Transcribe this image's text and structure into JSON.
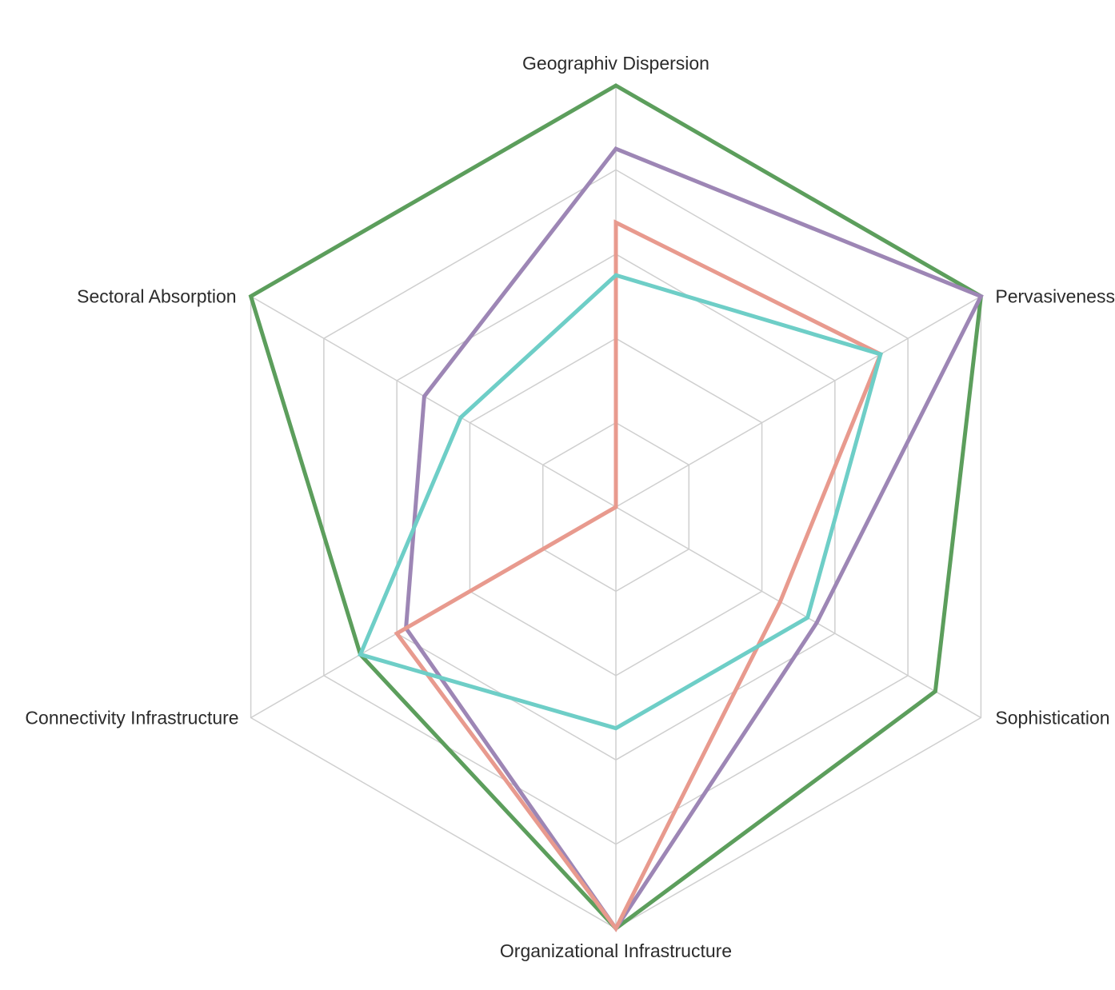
{
  "chart_data": {
    "type": "radar",
    "title": "",
    "axes": [
      "Geographiv Dispersion",
      "Pervasiveness",
      "Sophistication",
      "Organizational Infrastructure",
      "Connectivity Infrastructure",
      "Sectoral Absorption"
    ],
    "range": [
      0,
      4
    ],
    "grid_levels": 5,
    "grid": true,
    "legend": "none",
    "series": [
      {
        "color": "#5c9e5c",
        "values": [
          4.0,
          4.0,
          3.5,
          4.0,
          2.8,
          4.0
        ]
      },
      {
        "color": "#9d86b5",
        "values": [
          3.4,
          4.0,
          2.2,
          4.0,
          2.3,
          2.1
        ]
      },
      {
        "color": "#e89a8e",
        "values": [
          2.7,
          2.9,
          1.8,
          4.0,
          2.4,
          0.0
        ]
      },
      {
        "color": "#6ecec7",
        "values": [
          2.2,
          2.9,
          2.1,
          2.1,
          2.8,
          1.7
        ]
      }
    ]
  }
}
